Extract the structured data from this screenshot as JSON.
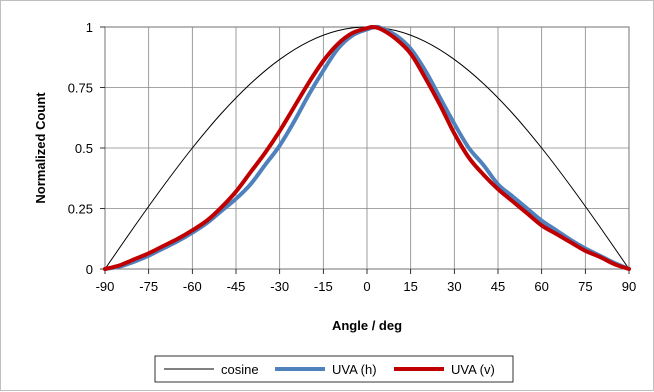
{
  "chart_data": {
    "type": "line",
    "title": "",
    "xlabel": "Angle / deg",
    "ylabel": "Normalized Count",
    "xlim": [
      -90,
      90
    ],
    "ylim": [
      0,
      1
    ],
    "x_ticks": [
      "-90",
      "-75",
      "-60",
      "-45",
      "-30",
      "-15",
      "0",
      "15",
      "30",
      "45",
      "60",
      "75",
      "90"
    ],
    "y_ticks": [
      "0",
      "0.25",
      "0.5",
      "0.75",
      "1"
    ],
    "grid": true,
    "legend_position": "bottom",
    "series": [
      {
        "name": "cosine",
        "color": "#000000",
        "x": [
          -90,
          -80,
          -70,
          -60,
          -50,
          -40,
          -30,
          -20,
          -10,
          0,
          10,
          20,
          30,
          40,
          50,
          60,
          70,
          80,
          90
        ],
        "y": [
          0,
          0.174,
          0.342,
          0.5,
          0.643,
          0.766,
          0.866,
          0.94,
          0.985,
          1,
          0.985,
          0.94,
          0.866,
          0.766,
          0.643,
          0.5,
          0.342,
          0.174,
          0
        ]
      },
      {
        "name": "UVA (h)",
        "color": "#4f81bd",
        "x": [
          -90,
          -85,
          -80,
          -75,
          -70,
          -65,
          -60,
          -55,
          -50,
          -45,
          -40,
          -35,
          -30,
          -25,
          -20,
          -15,
          -10,
          -5,
          0,
          3,
          5,
          10,
          15,
          20,
          25,
          30,
          35,
          40,
          45,
          50,
          55,
          60,
          65,
          70,
          75,
          80,
          85,
          90
        ],
        "y": [
          0,
          0.01,
          0.03,
          0.055,
          0.085,
          0.115,
          0.15,
          0.19,
          0.24,
          0.29,
          0.35,
          0.43,
          0.51,
          0.61,
          0.72,
          0.82,
          0.91,
          0.965,
          0.99,
          1,
          0.995,
          0.965,
          0.91,
          0.82,
          0.71,
          0.6,
          0.5,
          0.43,
          0.35,
          0.3,
          0.25,
          0.2,
          0.16,
          0.12,
          0.085,
          0.055,
          0.025,
          0
        ]
      },
      {
        "name": "UVA (v)",
        "color": "#c00000",
        "x": [
          -90,
          -85,
          -80,
          -75,
          -70,
          -65,
          -60,
          -55,
          -50,
          -45,
          -40,
          -35,
          -30,
          -25,
          -20,
          -15,
          -10,
          -5,
          0,
          2,
          5,
          10,
          15,
          20,
          25,
          30,
          35,
          40,
          45,
          50,
          55,
          60,
          65,
          70,
          75,
          80,
          85,
          90
        ],
        "y": [
          0,
          0.015,
          0.04,
          0.065,
          0.095,
          0.125,
          0.16,
          0.2,
          0.255,
          0.32,
          0.4,
          0.48,
          0.57,
          0.67,
          0.77,
          0.86,
          0.93,
          0.975,
          0.995,
          1,
          0.99,
          0.95,
          0.89,
          0.79,
          0.68,
          0.56,
          0.46,
          0.39,
          0.33,
          0.28,
          0.23,
          0.18,
          0.145,
          0.11,
          0.075,
          0.05,
          0.02,
          0
        ]
      }
    ]
  }
}
